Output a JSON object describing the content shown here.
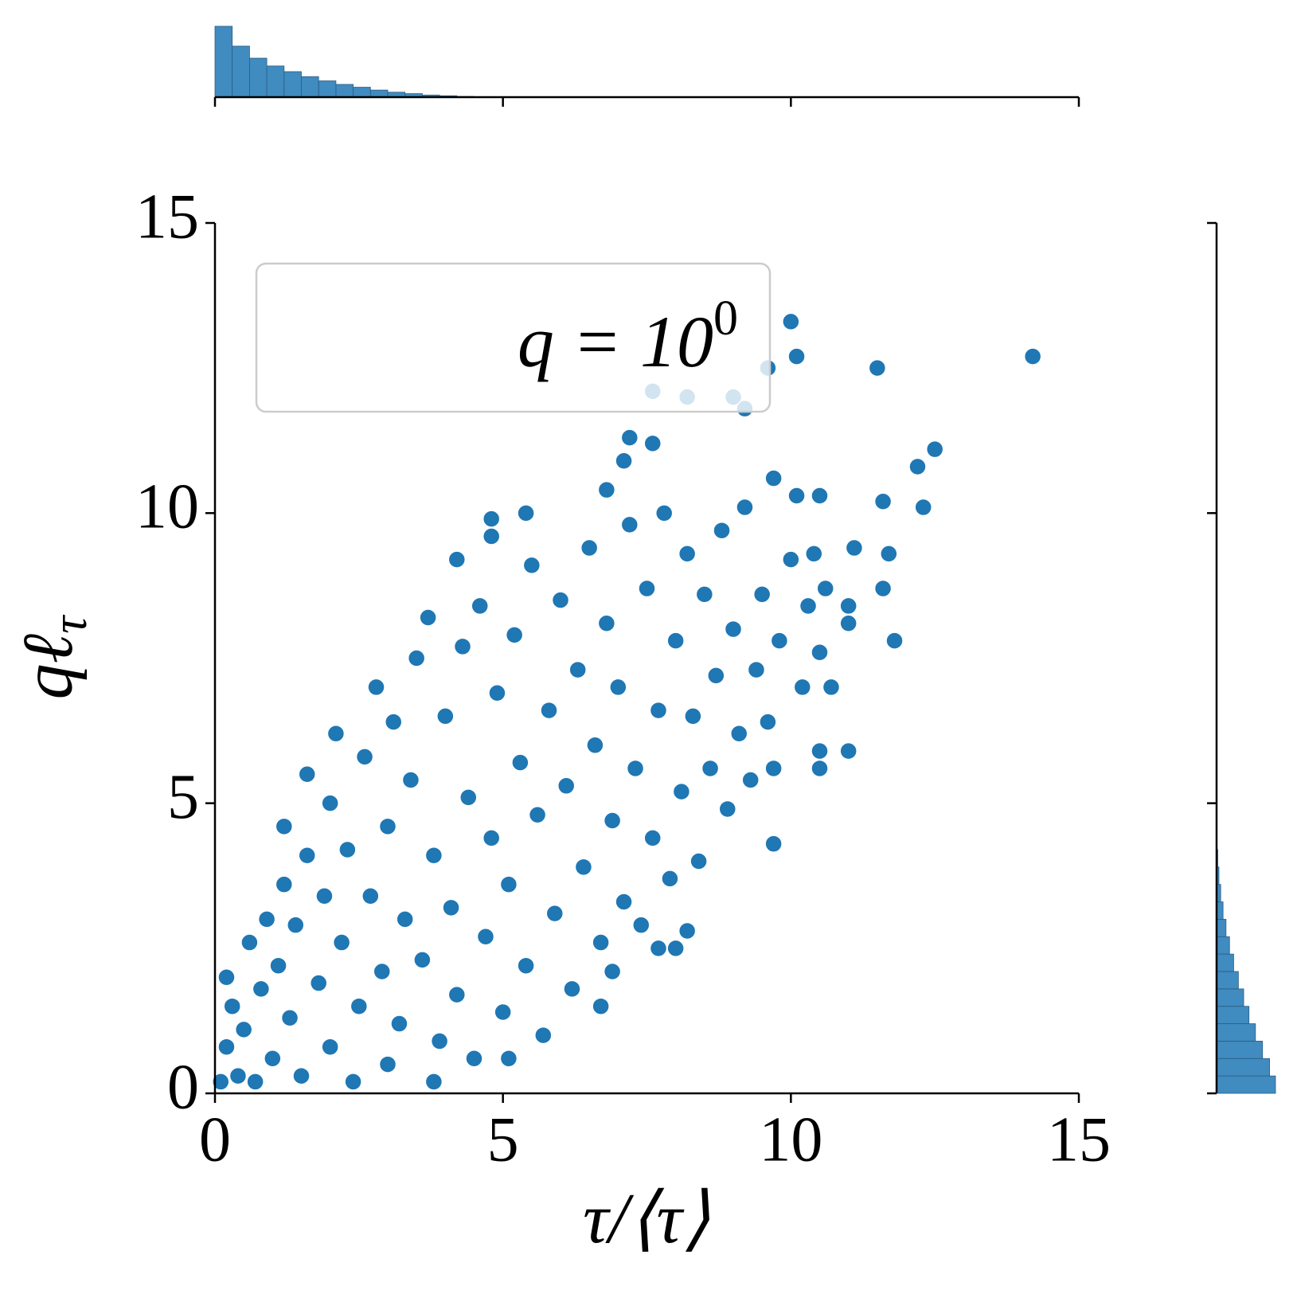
{
  "chart_data": [
    {
      "type": "scatter",
      "xlabel": "τ/⟨τ⟩",
      "ylabel": {
        "main": "qℓ",
        "sub": "τ"
      },
      "legend": {
        "text": "q = 10",
        "sup": "0"
      },
      "legend_position": "upper left",
      "color": "#1f77b4",
      "xlim": [
        0,
        15
      ],
      "ylim": [
        0,
        15
      ],
      "xticks": [
        0,
        5,
        10,
        15
      ],
      "yticks": [
        0,
        5,
        10,
        15
      ],
      "series": [
        {
          "name": "points",
          "color": "#1f77b4",
          "x": [
            0.1,
            0.2,
            0.3,
            0.2,
            0.4,
            0.5,
            0.6,
            0.7,
            0.8,
            0.9,
            1.0,
            1.1,
            1.2,
            1.2,
            1.3,
            1.4,
            1.5,
            1.6,
            1.6,
            1.8,
            1.9,
            2.0,
            2.0,
            2.1,
            2.2,
            2.3,
            2.4,
            2.5,
            2.6,
            2.7,
            2.8,
            2.9,
            3.0,
            3.0,
            3.1,
            3.2,
            3.3,
            3.4,
            3.5,
            3.6,
            3.7,
            3.8,
            3.9,
            4.0,
            4.1,
            4.2,
            4.3,
            4.4,
            4.5,
            4.6,
            4.7,
            4.8,
            4.9,
            5.0,
            5.1,
            5.2,
            5.3,
            5.4,
            5.5,
            5.6,
            5.7,
            5.8,
            5.9,
            6.0,
            6.1,
            6.2,
            6.3,
            6.4,
            6.5,
            6.6,
            6.7,
            6.8,
            6.9,
            7.0,
            7.1,
            7.2,
            7.3,
            7.4,
            7.5,
            7.6,
            7.7,
            7.8,
            7.9,
            8.0,
            8.1,
            8.2,
            8.3,
            8.4,
            8.5,
            8.6,
            8.7,
            8.8,
            8.9,
            9.0,
            9.1,
            9.2,
            9.3,
            9.4,
            9.5,
            9.6,
            9.7,
            9.8,
            10.0,
            10.1,
            10.2,
            10.3,
            10.4,
            10.5,
            10.5,
            10.6,
            14.2,
            11.5,
            10.1,
            10.0,
            9.6,
            9.2,
            9.0,
            8.2,
            7.6,
            12.5,
            12.2,
            12.3,
            11.6,
            11.7,
            11.6,
            11.8,
            11.1,
            11.0,
            11.0,
            11.0,
            10.7,
            10.5,
            10.5,
            9.7,
            9.7,
            7.2,
            7.6,
            7.1,
            6.8,
            5.4,
            4.8,
            4.8,
            4.2,
            7.7,
            6.7,
            6.9,
            5.1,
            3.8,
            8.2,
            8.0
          ],
          "values": [
            0.2,
            0.8,
            1.5,
            2.0,
            0.3,
            1.1,
            2.6,
            0.2,
            1.8,
            3.0,
            0.6,
            2.2,
            3.6,
            4.6,
            1.3,
            2.9,
            0.3,
            4.1,
            5.5,
            1.9,
            3.4,
            0.8,
            5.0,
            6.2,
            2.6,
            4.2,
            0.2,
            1.5,
            5.8,
            3.4,
            7.0,
            2.1,
            4.6,
            0.5,
            6.4,
            1.2,
            3.0,
            5.4,
            7.5,
            2.3,
            8.2,
            4.1,
            0.9,
            6.5,
            3.2,
            1.7,
            7.7,
            5.1,
            0.6,
            8.4,
            2.7,
            4.4,
            6.9,
            1.4,
            3.6,
            7.9,
            5.7,
            2.2,
            9.1,
            4.8,
            1.0,
            6.6,
            3.1,
            8.5,
            5.3,
            1.8,
            7.3,
            3.9,
            9.4,
            6.0,
            2.6,
            8.1,
            4.7,
            7.0,
            3.3,
            9.8,
            5.6,
            2.9,
            8.7,
            4.4,
            6.6,
            10.0,
            3.7,
            7.8,
            5.2,
            9.3,
            6.5,
            4.0,
            8.6,
            5.6,
            7.2,
            9.7,
            4.9,
            8.0,
            6.2,
            10.1,
            5.4,
            7.3,
            8.6,
            6.4,
            10.6,
            7.8,
            9.2,
            10.3,
            7.0,
            8.4,
            9.3,
            7.6,
            10.3,
            8.7,
            12.7,
            12.5,
            12.7,
            13.3,
            12.5,
            11.8,
            12.0,
            12.0,
            12.1,
            11.1,
            10.8,
            10.1,
            10.2,
            9.3,
            8.7,
            7.8,
            9.4,
            8.4,
            8.1,
            5.9,
            7.0,
            5.6,
            5.9,
            5.6,
            4.3,
            11.3,
            11.2,
            10.9,
            10.4,
            10.0,
            9.9,
            9.6,
            9.2,
            2.5,
            1.5,
            2.1,
            0.6,
            0.2,
            2.8,
            2.5
          ]
        }
      ]
    },
    {
      "type": "histogram",
      "orientation": "vertical",
      "color": "#1f77b4",
      "xlim": [
        0,
        15
      ],
      "xticks": [
        0,
        5,
        10,
        15
      ],
      "ylim": [
        0,
        100
      ],
      "bins": [
        0,
        0.3,
        0.6,
        0.9,
        1.2,
        1.5,
        1.8,
        2.1,
        2.4,
        2.7,
        3.0,
        3.3,
        3.6,
        3.9,
        4.2,
        4.5
      ],
      "values": [
        100,
        72,
        55,
        44,
        36,
        29,
        23,
        18,
        14,
        10,
        7,
        5,
        3,
        2,
        1
      ]
    },
    {
      "type": "histogram",
      "orientation": "horizontal",
      "color": "#1f77b4",
      "ylim": [
        0,
        15
      ],
      "yticks": [
        0,
        5,
        10,
        15
      ],
      "xlim": [
        0,
        100
      ],
      "bins": [
        0,
        0.3,
        0.6,
        0.9,
        1.2,
        1.5,
        1.8,
        2.1,
        2.4,
        2.7,
        3.0,
        3.3,
        3.6,
        3.9,
        4.2
      ],
      "values": [
        100,
        90,
        78,
        66,
        55,
        46,
        37,
        29,
        22,
        16,
        11,
        7,
        4,
        2
      ]
    }
  ]
}
